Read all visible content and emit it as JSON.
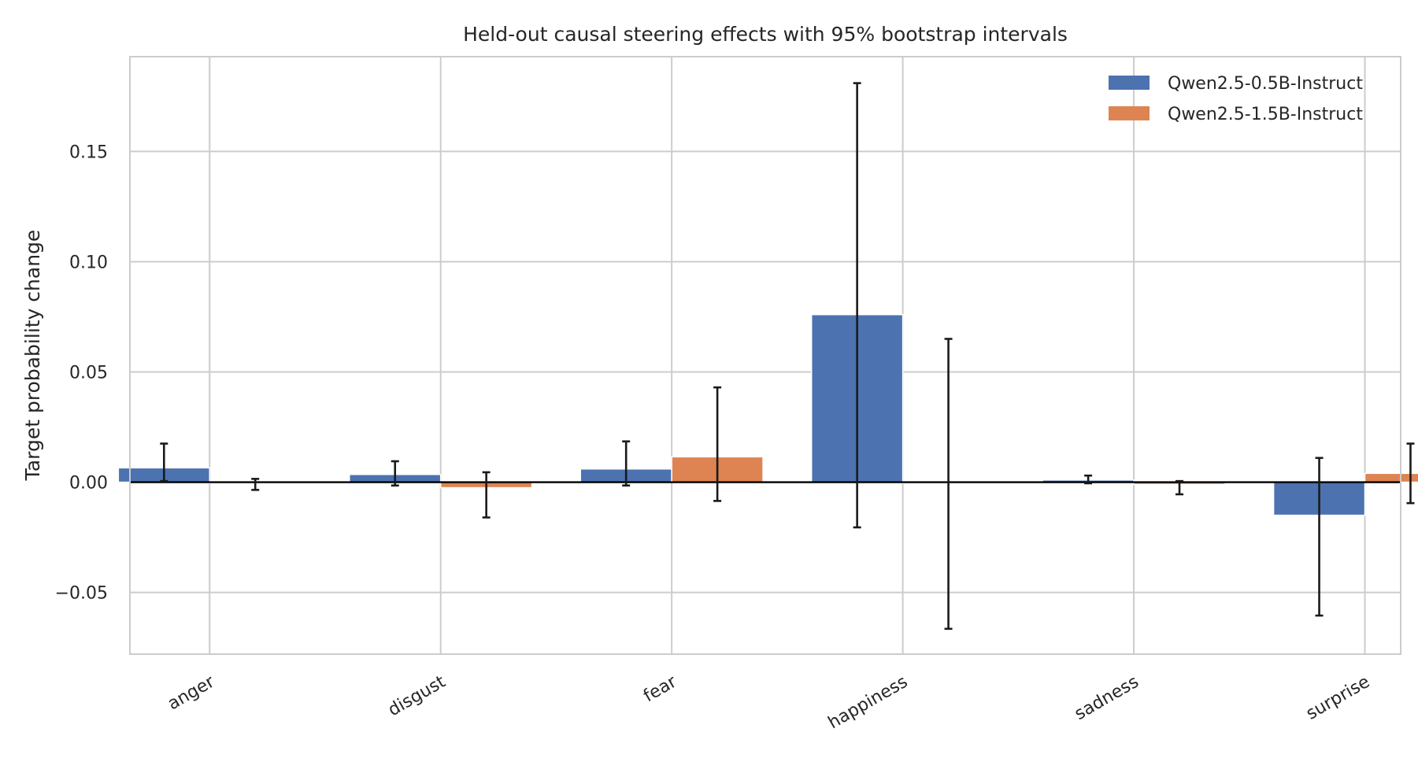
{
  "chart_data": {
    "type": "bar",
    "title": "Held-out causal steering effects with 95% bootstrap intervals",
    "xlabel": "",
    "ylabel": "Target probability change",
    "categories": [
      "anger",
      "disgust",
      "fear",
      "happiness",
      "sadness",
      "surprise"
    ],
    "ylim": [
      -0.078,
      0.193
    ],
    "yticks": [
      -0.05,
      0.0,
      0.05,
      0.1,
      0.15
    ],
    "ytick_labels": [
      "−0.05",
      "0.00",
      "0.05",
      "0.10",
      "0.15"
    ],
    "grid": true,
    "legend_position": "top-right",
    "series": [
      {
        "name": "Qwen2.5-0.5B-Instruct",
        "color": "#4c72b0",
        "values": [
          0.0065,
          0.0035,
          0.006,
          0.076,
          0.001,
          -0.015
        ],
        "ci_low": [
          0.0005,
          -0.0015,
          -0.0015,
          -0.0205,
          -0.0005,
          -0.0605
        ],
        "ci_high": [
          0.0175,
          0.0095,
          0.0185,
          0.181,
          0.003,
          0.011
        ]
      },
      {
        "name": "Qwen2.5-1.5B-Instruct",
        "color": "#dd8452",
        "values": [
          -0.0005,
          -0.0025,
          0.0115,
          -0.0005,
          -0.001,
          0.004
        ],
        "ci_low": [
          -0.0035,
          -0.016,
          -0.0085,
          -0.0665,
          -0.0055,
          -0.0095
        ],
        "ci_high": [
          0.0015,
          0.0045,
          0.043,
          0.065,
          0.0005,
          0.0175
        ]
      }
    ]
  }
}
